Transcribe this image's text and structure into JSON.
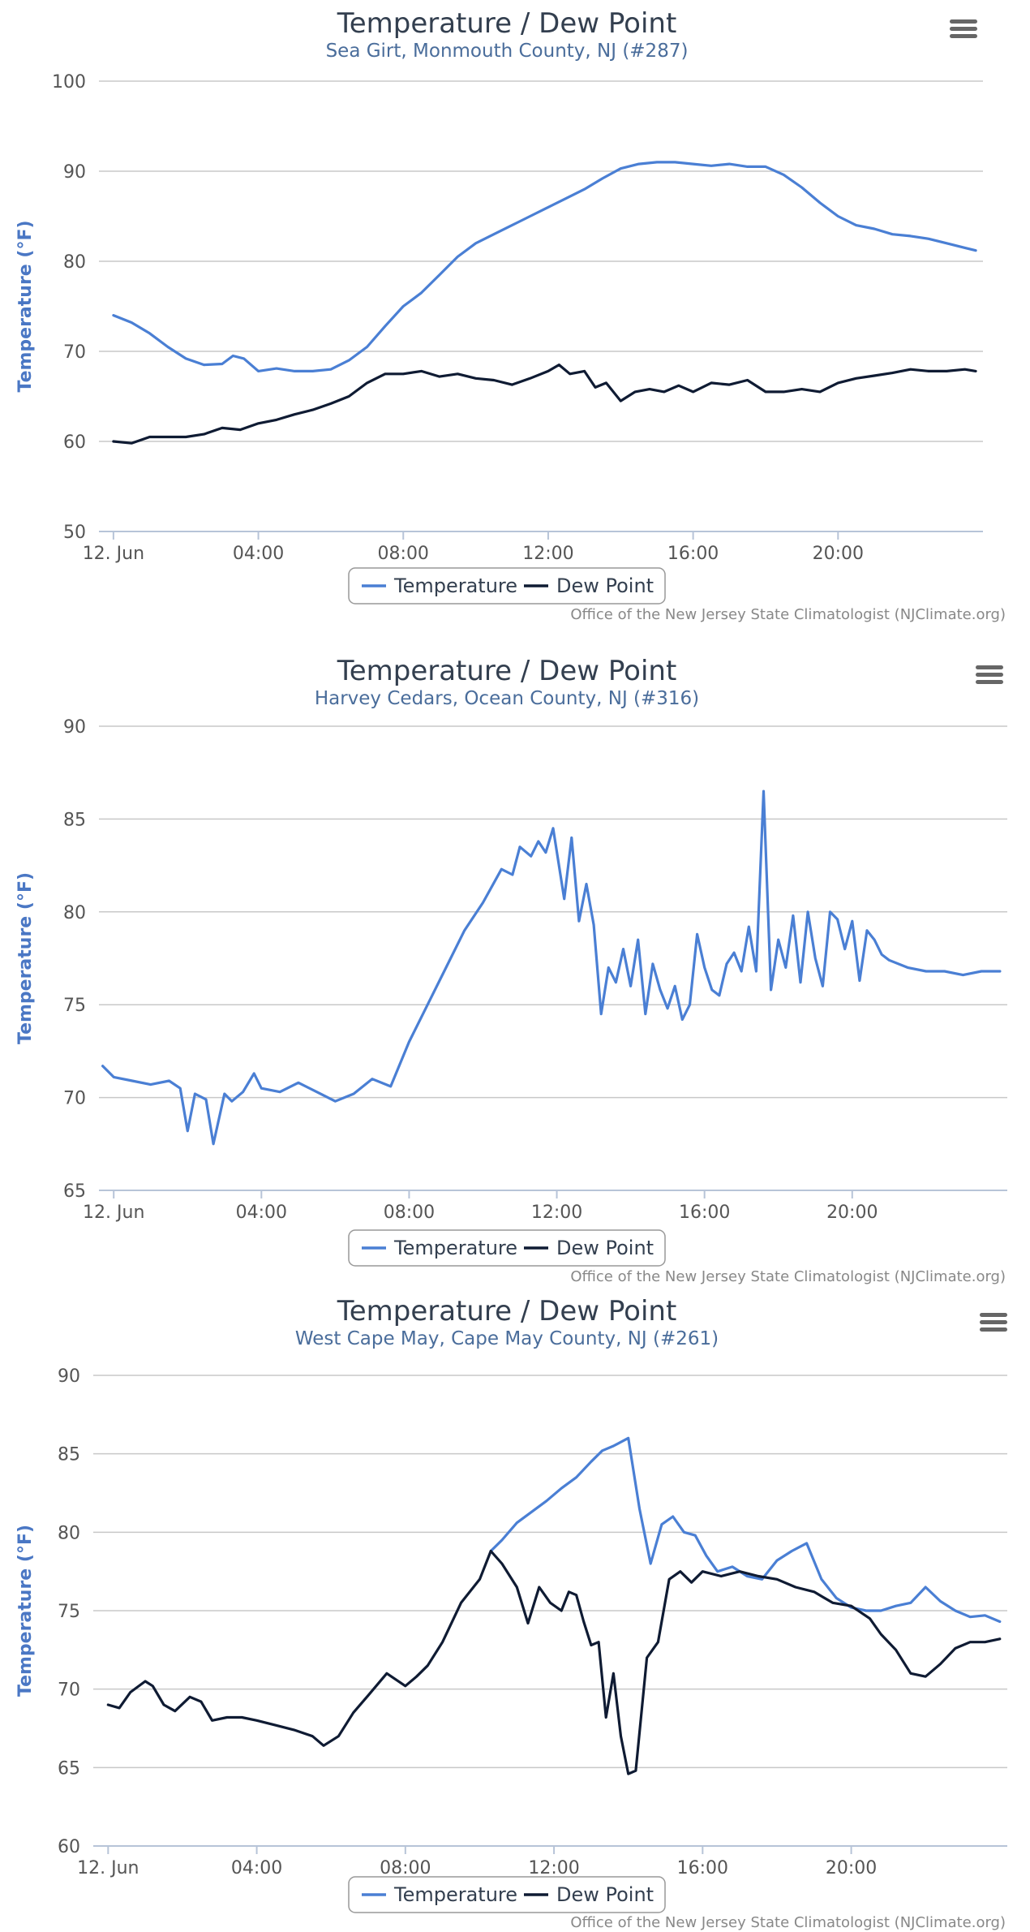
{
  "colors": {
    "temperature": "#4a7fd4",
    "dew_point": "#0f1b33"
  },
  "icons": {
    "menu": "hamburger-menu-icon"
  },
  "chart_data": [
    {
      "type": "line",
      "title": "Temperature / Dew Point",
      "subtitle": "Sea Girt, Monmouth County, NJ (#287)",
      "ylabel": "Temperature (°F)",
      "xlabel": "",
      "credit": "Office of the New Jersey State Climatologist (NJClimate.org)",
      "legend_position": "bottom-center",
      "grid": true,
      "ylim": [
        50,
        100
      ],
      "yticks": [
        50,
        60,
        70,
        80,
        90,
        100
      ],
      "xlim": [
        -0.4,
        24
      ],
      "xticks": [
        {
          "x": 0,
          "label": "12. Jun"
        },
        {
          "x": 4,
          "label": "04:00"
        },
        {
          "x": 8,
          "label": "08:00"
        },
        {
          "x": 12,
          "label": "12:00"
        },
        {
          "x": 16,
          "label": "16:00"
        },
        {
          "x": 20,
          "label": "20:00"
        }
      ],
      "series": [
        {
          "name": "Temperature",
          "x": [
            0,
            0.5,
            1,
            1.5,
            2,
            2.5,
            3,
            3.3,
            3.6,
            4,
            4.5,
            5,
            5.5,
            6,
            6.5,
            7,
            7.5,
            8,
            8.5,
            9,
            9.5,
            10,
            10.5,
            11,
            11.5,
            12,
            12.5,
            13,
            13.5,
            14,
            14.5,
            15,
            15.5,
            16,
            16.5,
            17,
            17.5,
            18,
            18.5,
            19,
            19.5,
            20,
            20.5,
            21,
            21.5,
            22,
            22.5,
            23,
            23.5,
            23.8
          ],
          "values": [
            74,
            73.2,
            72,
            70.5,
            69.2,
            68.5,
            68.6,
            69.5,
            69.2,
            67.8,
            68.1,
            67.8,
            67.8,
            68.0,
            69.0,
            70.5,
            72.8,
            75.0,
            76.5,
            78.5,
            80.5,
            82.0,
            83.0,
            84.0,
            85.0,
            86.0,
            87.0,
            88.0,
            89.2,
            90.3,
            90.8,
            91.0,
            91.0,
            90.8,
            90.6,
            90.8,
            90.5,
            90.5,
            89.6,
            88.2,
            86.5,
            85.0,
            84.0,
            83.6,
            83.0,
            82.8,
            82.5,
            82.0,
            81.5,
            81.2
          ]
        },
        {
          "name": "Dew Point",
          "x": [
            0,
            0.5,
            1,
            1.5,
            2,
            2.5,
            3,
            3.5,
            4,
            4.5,
            5,
            5.5,
            6,
            6.5,
            7,
            7.5,
            8,
            8.5,
            9,
            9.5,
            10,
            10.5,
            11,
            11.5,
            12,
            12.3,
            12.6,
            13,
            13.3,
            13.6,
            14,
            14.4,
            14.8,
            15.2,
            15.6,
            16,
            16.5,
            17,
            17.5,
            18,
            18.5,
            19,
            19.5,
            20,
            20.5,
            21,
            21.5,
            22,
            22.5,
            23,
            23.5,
            23.8
          ],
          "values": [
            60,
            59.8,
            60.5,
            60.5,
            60.5,
            60.8,
            61.5,
            61.3,
            62.0,
            62.4,
            63.0,
            63.5,
            64.2,
            65.0,
            66.5,
            67.5,
            67.5,
            67.8,
            67.2,
            67.5,
            67.0,
            66.8,
            66.3,
            67.0,
            67.8,
            68.5,
            67.5,
            67.8,
            66.0,
            66.5,
            64.5,
            65.5,
            65.8,
            65.5,
            66.2,
            65.5,
            66.5,
            66.3,
            66.8,
            65.5,
            65.5,
            65.8,
            65.5,
            66.5,
            67.0,
            67.3,
            67.6,
            68.0,
            67.8,
            67.8,
            68.0,
            67.8
          ]
        }
      ]
    },
    {
      "type": "line",
      "title": "Temperature / Dew Point",
      "subtitle": "Harvey Cedars, Ocean County, NJ (#316)",
      "ylabel": "Temperature (°F)",
      "xlabel": "",
      "credit": "Office of the New Jersey State Climatologist (NJClimate.org)",
      "legend_position": "bottom-center",
      "grid": true,
      "ylim": [
        65,
        90
      ],
      "yticks": [
        65,
        70,
        75,
        80,
        85,
        90
      ],
      "xlim": [
        -0.4,
        24.2
      ],
      "xticks": [
        {
          "x": 0,
          "label": "12. Jun"
        },
        {
          "x": 4,
          "label": "04:00"
        },
        {
          "x": 8,
          "label": "08:00"
        },
        {
          "x": 12,
          "label": "12:00"
        },
        {
          "x": 16,
          "label": "16:00"
        },
        {
          "x": 20,
          "label": "20:00"
        }
      ],
      "series": [
        {
          "name": "Temperature",
          "x": [
            -0.3,
            0,
            0.5,
            1,
            1.5,
            1.8,
            2.0,
            2.2,
            2.5,
            2.7,
            3.0,
            3.2,
            3.5,
            3.8,
            4.0,
            4.5,
            5.0,
            5.5,
            6.0,
            6.5,
            7.0,
            7.5,
            8.0,
            8.5,
            9.0,
            9.5,
            10.0,
            10.5,
            10.8,
            11.0,
            11.3,
            11.5,
            11.7,
            11.9,
            12.2,
            12.4,
            12.6,
            12.8,
            13.0,
            13.2,
            13.4,
            13.6,
            13.8,
            14.0,
            14.2,
            14.4,
            14.6,
            14.8,
            15.0,
            15.2,
            15.4,
            15.6,
            15.8,
            16.0,
            16.2,
            16.4,
            16.6,
            16.8,
            17.0,
            17.2,
            17.4,
            17.6,
            17.8,
            18.0,
            18.2,
            18.4,
            18.6,
            18.8,
            19.0,
            19.2,
            19.4,
            19.6,
            19.8,
            20.0,
            20.2,
            20.4,
            20.6,
            20.8,
            21.0,
            21.5,
            22.0,
            22.5,
            23.0,
            23.5,
            24.0
          ],
          "values": [
            71.7,
            71.1,
            70.9,
            70.7,
            70.9,
            70.5,
            68.2,
            70.2,
            69.9,
            67.5,
            70.2,
            69.8,
            70.3,
            71.3,
            70.5,
            70.3,
            70.8,
            70.3,
            69.8,
            70.2,
            71.0,
            70.6,
            73.0,
            75.0,
            77.0,
            79.0,
            80.5,
            82.3,
            82.0,
            83.5,
            83.0,
            83.8,
            83.2,
            84.5,
            80.7,
            84.0,
            79.5,
            81.5,
            79.3,
            74.5,
            77.0,
            76.2,
            78.0,
            76.0,
            78.5,
            74.5,
            77.2,
            75.8,
            74.8,
            76.0,
            74.2,
            75.0,
            78.8,
            77.0,
            75.8,
            75.5,
            77.2,
            77.8,
            76.8,
            79.2,
            76.8,
            86.5,
            75.8,
            78.5,
            77.0,
            79.8,
            76.2,
            80.0,
            77.5,
            76.0,
            80.0,
            79.6,
            78.0,
            79.5,
            76.3,
            79.0,
            78.5,
            77.7,
            77.4,
            77.0,
            76.8,
            76.8,
            76.6,
            76.8,
            76.8
          ]
        },
        {
          "name": "Dew Point",
          "x": [],
          "values": []
        }
      ]
    },
    {
      "type": "line",
      "title": "Temperature / Dew Point",
      "subtitle": "West Cape May, Cape May County, NJ (#261)",
      "ylabel": "Temperature (°F)",
      "xlabel": "",
      "credit": "Office of the New Jersey State Climatologist (NJClimate.org)",
      "legend_position": "bottom-center",
      "grid": true,
      "ylim": [
        60,
        90
      ],
      "yticks": [
        60,
        65,
        70,
        75,
        80,
        85,
        90
      ],
      "xlim": [
        -0.4,
        24.2
      ],
      "xticks": [
        {
          "x": 0,
          "label": "12. Jun"
        },
        {
          "x": 4,
          "label": "04:00"
        },
        {
          "x": 8,
          "label": "08:00"
        },
        {
          "x": 12,
          "label": "12:00"
        },
        {
          "x": 16,
          "label": "16:00"
        },
        {
          "x": 20,
          "label": "20:00"
        }
      ],
      "series": [
        {
          "name": "Temperature",
          "x": [
            10.3,
            10.6,
            11.0,
            11.4,
            11.8,
            12.2,
            12.6,
            13.0,
            13.3,
            13.6,
            14.0,
            14.3,
            14.6,
            14.9,
            15.2,
            15.5,
            15.8,
            16.1,
            16.4,
            16.8,
            17.2,
            17.6,
            18.0,
            18.4,
            18.8,
            19.2,
            19.6,
            20.0,
            20.4,
            20.8,
            21.2,
            21.6,
            22.0,
            22.4,
            22.8,
            23.2,
            23.6,
            24.0
          ],
          "values": [
            78.8,
            79.5,
            80.6,
            81.3,
            82.0,
            82.8,
            83.5,
            84.5,
            85.2,
            85.5,
            86.0,
            81.5,
            78.0,
            80.5,
            81.0,
            80.0,
            79.8,
            78.5,
            77.5,
            77.8,
            77.2,
            77.0,
            78.2,
            78.8,
            79.3,
            77.0,
            75.8,
            75.2,
            75.0,
            75.0,
            75.3,
            75.5,
            76.5,
            75.6,
            75.0,
            74.6,
            74.7,
            74.3
          ]
        },
        {
          "name": "Dew Point",
          "x": [
            0,
            0.3,
            0.6,
            1.0,
            1.2,
            1.5,
            1.8,
            2.2,
            2.5,
            2.8,
            3.2,
            3.6,
            4.0,
            4.5,
            5.0,
            5.5,
            5.8,
            6.2,
            6.6,
            7.0,
            7.5,
            8.0,
            8.3,
            8.6,
            9.0,
            9.5,
            10.0,
            10.3,
            10.6,
            11.0,
            11.3,
            11.6,
            11.9,
            12.2,
            12.4,
            12.6,
            12.8,
            13.0,
            13.2,
            13.4,
            13.6,
            13.8,
            14.0,
            14.2,
            14.5,
            14.8,
            15.1,
            15.4,
            15.7,
            16.0,
            16.5,
            17.0,
            17.5,
            18.0,
            18.5,
            19.0,
            19.5,
            20.0,
            20.5,
            20.8,
            21.2,
            21.6,
            22.0,
            22.4,
            22.8,
            23.2,
            23.6,
            24.0
          ],
          "values": [
            69.0,
            68.8,
            69.8,
            70.5,
            70.2,
            69.0,
            68.6,
            69.5,
            69.2,
            68.0,
            68.2,
            68.2,
            68.0,
            67.7,
            67.4,
            67.0,
            66.4,
            67.0,
            68.5,
            69.6,
            71.0,
            70.2,
            70.8,
            71.5,
            73.0,
            75.5,
            77.0,
            78.8,
            78.0,
            76.5,
            74.2,
            76.5,
            75.5,
            75.0,
            76.2,
            76.0,
            74.3,
            72.8,
            73.0,
            68.2,
            71.0,
            67.0,
            64.6,
            64.8,
            72.0,
            73.0,
            77.0,
            77.5,
            76.8,
            77.5,
            77.2,
            77.5,
            77.2,
            77.0,
            76.5,
            76.2,
            75.5,
            75.3,
            74.5,
            73.5,
            72.5,
            71.0,
            70.8,
            71.6,
            72.6,
            73.0,
            73.0,
            73.2
          ]
        }
      ]
    }
  ]
}
